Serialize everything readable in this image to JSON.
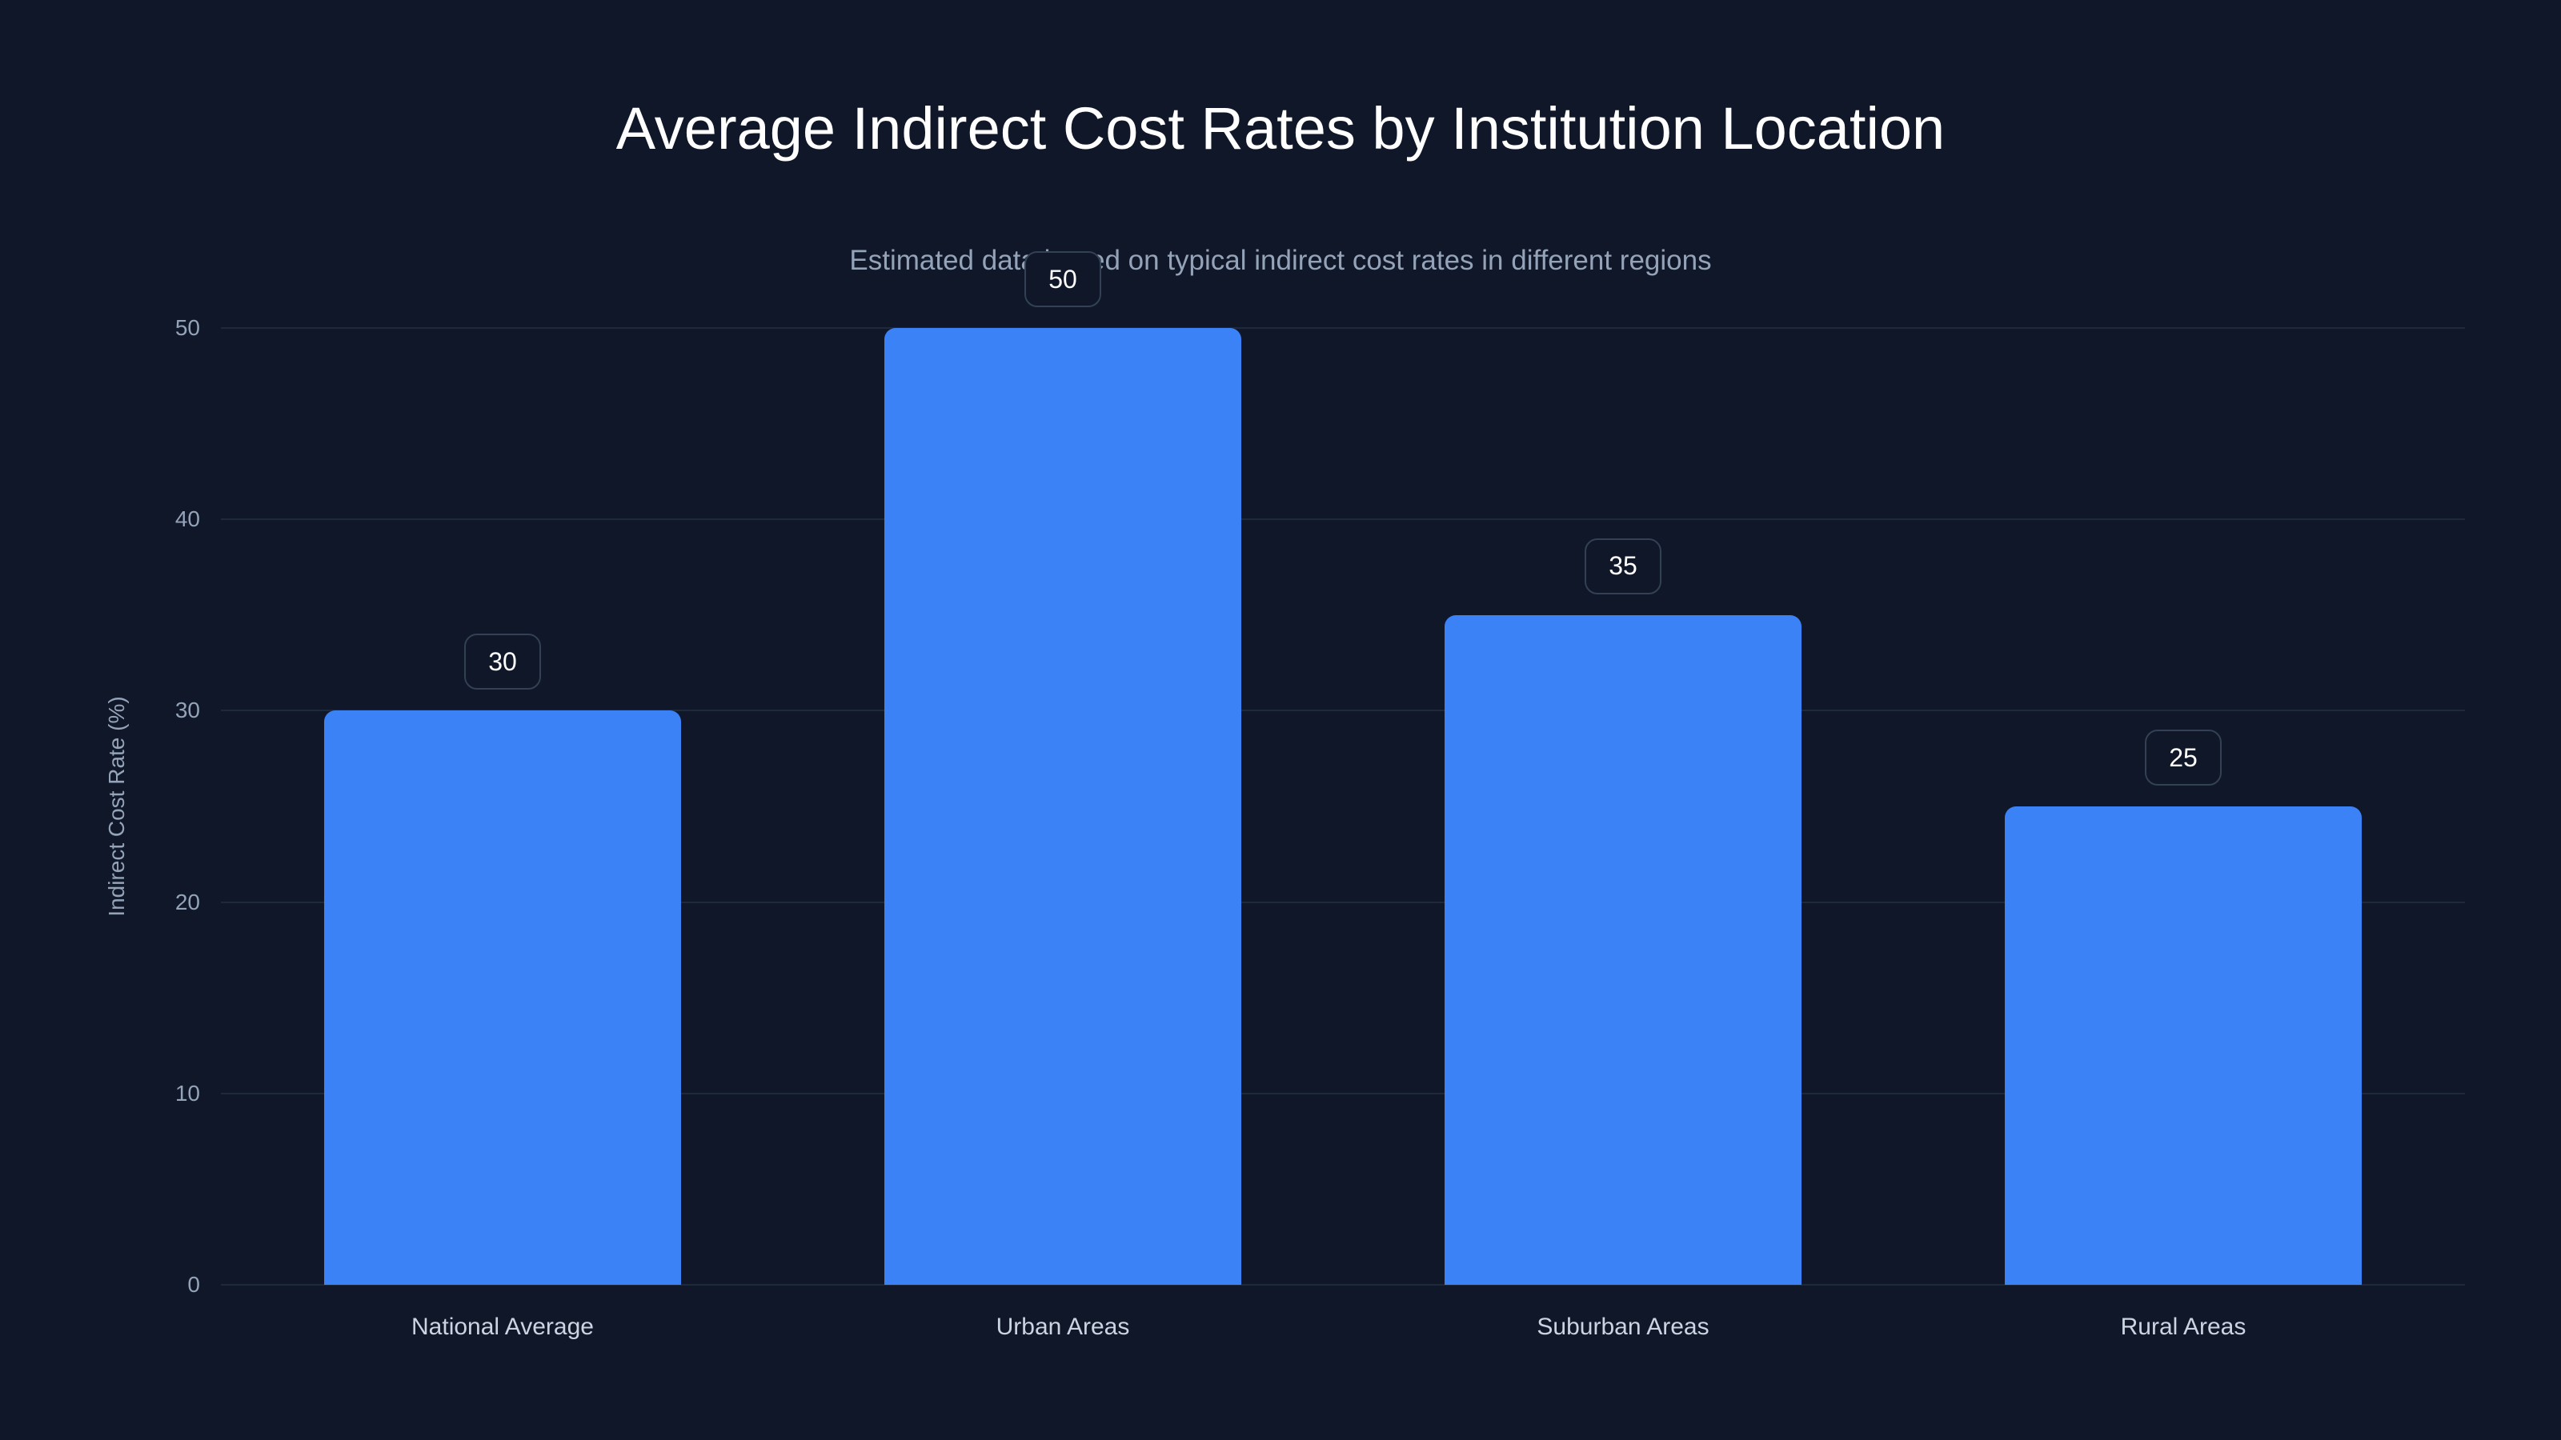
{
  "chart_data": {
    "type": "bar",
    "title": "Average Indirect Cost Rates by Institution Location",
    "subtitle": "Estimated data based on typical indirect cost rates in different regions",
    "categories": [
      "National Average",
      "Urban Areas",
      "Suburban Areas",
      "Rural Areas"
    ],
    "values": [
      30,
      50,
      35,
      25
    ],
    "xlabel": "",
    "ylabel": "Indirect Cost Rate (%)",
    "ylim": [
      0,
      50
    ],
    "yticks": [
      0,
      10,
      20,
      30,
      40,
      50
    ],
    "grid": true,
    "legend": null,
    "bar_color": "#3b82f6",
    "data_labels": [
      "30",
      "50",
      "35",
      "25"
    ]
  },
  "colors": {
    "background": "#0f1729",
    "bar": "#3b82f6",
    "grid": "#1e293b",
    "muted_text": "#94a3b8"
  }
}
